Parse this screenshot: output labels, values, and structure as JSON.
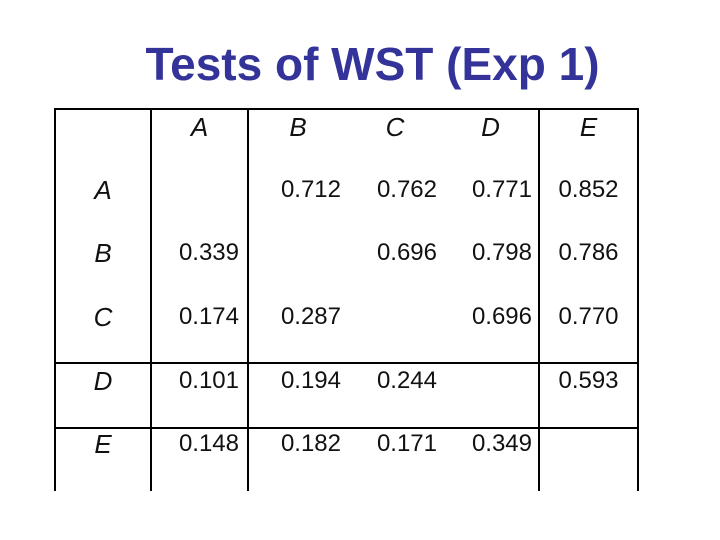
{
  "slide": {
    "background": "#ffffff",
    "title": {
      "text": "Tests of WST (Exp 1)",
      "color": "#333399"
    }
  },
  "table": {
    "border_color": "#000000",
    "text_color": "#111111",
    "col_headers": [
      "",
      "A",
      "B",
      "C",
      "D",
      "E"
    ],
    "rows": [
      {
        "label": "A",
        "values": [
          "",
          "0.712",
          "0.762",
          "0.771",
          "0.852"
        ]
      },
      {
        "label": "B",
        "values": [
          "0.339",
          "",
          "0.696",
          "0.798",
          "0.786"
        ]
      },
      {
        "label": "C",
        "values": [
          "0.174",
          "0.287",
          "",
          "0.696",
          "0.770"
        ]
      },
      {
        "label": "D",
        "values": [
          "0.101",
          "0.194",
          "0.244",
          "",
          "0.593"
        ]
      },
      {
        "label": "E",
        "values": [
          "0.148",
          "0.182",
          "0.171",
          "0.349",
          ""
        ]
      }
    ]
  }
}
